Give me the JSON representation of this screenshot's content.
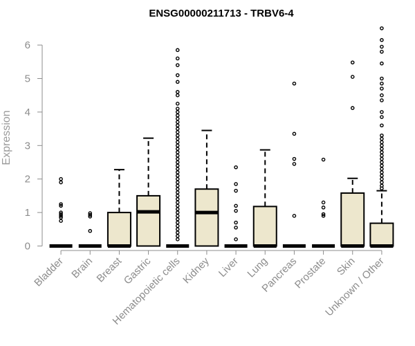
{
  "chart_data": {
    "type": "box",
    "title": "ENSG00000211713 - TRBV6-4",
    "ylabel": "Expression",
    "xlabel": "",
    "ylim": [
      0,
      6.5
    ],
    "yticks": [
      0,
      1,
      2,
      3,
      4,
      5,
      6
    ],
    "grid": false,
    "colors": {
      "box_fill": "#ede7cd",
      "stroke": "#000000",
      "axis": "#8c8c8c"
    },
    "categories": [
      "Bladder",
      "Brain",
      "Breast",
      "Gastric",
      "Hematopoietic cells",
      "Kidney",
      "Liver",
      "Lung",
      "Pancreas",
      "Prostate",
      "Skin",
      "Unknown / Other"
    ],
    "boxes": [
      {
        "q1": 0,
        "median": 0,
        "q3": 0,
        "whisker_low": 0,
        "whisker_high": 0,
        "outliers": [
          2.0,
          1.9,
          1.25,
          1.2,
          1.0,
          0.95,
          0.9,
          0.85,
          0.75
        ]
      },
      {
        "q1": 0,
        "median": 0,
        "q3": 0,
        "whisker_low": 0,
        "whisker_high": 0,
        "outliers": [
          0.98,
          0.93,
          0.88,
          0.45
        ]
      },
      {
        "q1": 0,
        "median": 0,
        "q3": 1.0,
        "whisker_low": 0,
        "whisker_high": 2.28,
        "outliers": []
      },
      {
        "q1": 0,
        "median": 1.02,
        "q3": 1.5,
        "whisker_low": 0,
        "whisker_high": 3.22,
        "outliers": []
      },
      {
        "q1": 0,
        "median": 0,
        "q3": 0,
        "whisker_low": 0,
        "whisker_high": 0,
        "outliers": [
          5.85,
          5.6,
          5.4,
          5.1,
          4.9,
          4.6,
          4.5,
          4.25,
          4.1,
          4.0,
          3.9,
          3.8,
          3.7,
          3.6,
          3.5,
          3.4,
          3.3,
          3.2,
          3.1,
          3.0,
          2.9,
          2.8,
          2.7,
          2.6,
          2.5,
          2.4,
          2.3,
          2.2,
          2.1,
          2.0,
          1.9,
          1.8,
          1.7,
          1.6,
          1.5,
          1.4,
          1.3,
          1.2,
          1.1,
          1.0,
          0.9,
          0.8,
          0.7,
          0.6,
          0.5,
          0.4,
          0.3,
          0.2
        ]
      },
      {
        "q1": 0,
        "median": 1.0,
        "q3": 1.7,
        "whisker_low": 0,
        "whisker_high": 3.45,
        "outliers": []
      },
      {
        "q1": 0,
        "median": 0,
        "q3": 0,
        "whisker_low": 0,
        "whisker_high": 0,
        "outliers": [
          2.35,
          1.85,
          1.65,
          1.2,
          1.05,
          0.7,
          0.55,
          0.2
        ]
      },
      {
        "q1": 0,
        "median": 0,
        "q3": 1.18,
        "whisker_low": 0,
        "whisker_high": 2.87,
        "outliers": []
      },
      {
        "q1": 0,
        "median": 0,
        "q3": 0,
        "whisker_low": 0,
        "whisker_high": 0,
        "outliers": [
          4.85,
          3.35,
          2.6,
          2.45,
          0.9
        ]
      },
      {
        "q1": 0,
        "median": 0,
        "q3": 0,
        "whisker_low": 0,
        "whisker_high": 0,
        "outliers": [
          2.58,
          1.3,
          1.15,
          0.95,
          0.9
        ]
      },
      {
        "q1": 0,
        "median": 0,
        "q3": 1.58,
        "whisker_low": 0,
        "whisker_high": 2.02,
        "outliers": [
          5.48,
          5.05,
          4.12
        ]
      },
      {
        "q1": 0,
        "median": 0,
        "q3": 0.68,
        "whisker_low": 0,
        "whisker_high": 1.65,
        "outliers": [
          6.5,
          6.15,
          5.95,
          5.8,
          5.45,
          5.0,
          4.85,
          4.7,
          4.5,
          4.35,
          4.0,
          3.85,
          3.6,
          3.3,
          3.2,
          3.1,
          3.0,
          2.9,
          2.8,
          2.7,
          2.6,
          2.5,
          2.4,
          2.3,
          2.2,
          2.1,
          2.0,
          1.9,
          1.8,
          1.72
        ]
      }
    ]
  }
}
